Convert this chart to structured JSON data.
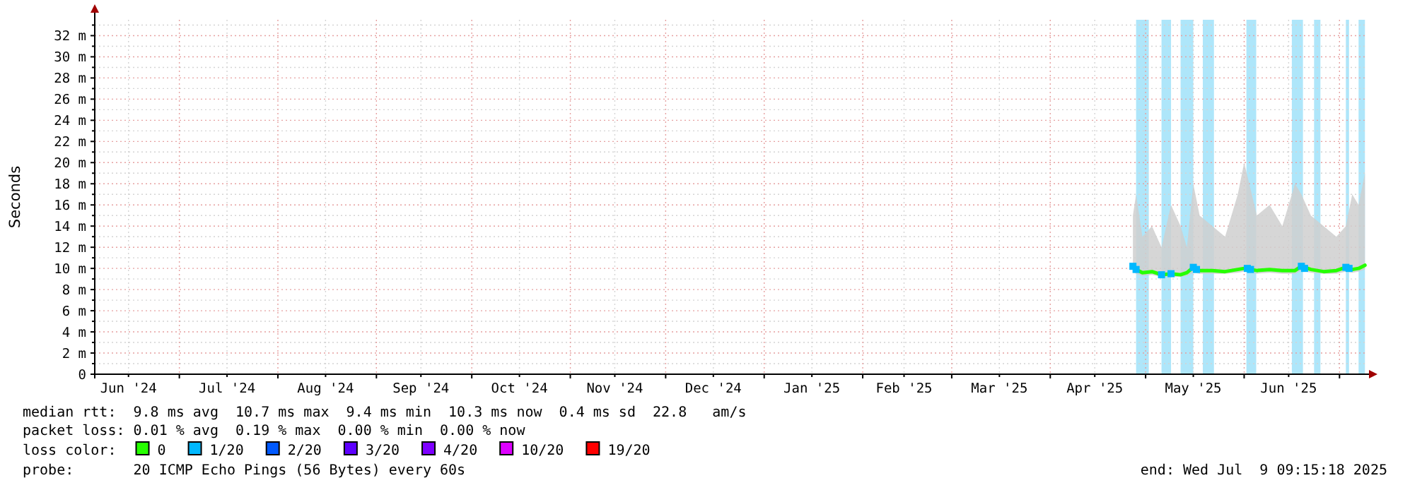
{
  "chart_data": {
    "type": "line",
    "ylabel": "Seconds",
    "xlim": [
      "2024-06-04T09:15",
      "2025-07-09T09:15"
    ],
    "xticks": [
      {
        "value": "2024-06-15",
        "label": "Jun '24"
      },
      {
        "value": "2024-07-01",
        "label": null
      },
      {
        "value": "2024-07-16",
        "label": "Jul '24"
      },
      {
        "value": "2024-08-01",
        "label": null
      },
      {
        "value": "2024-08-16",
        "label": "Aug '24"
      },
      {
        "value": "2024-09-01",
        "label": null
      },
      {
        "value": "2024-09-15",
        "label": "Sep '24"
      },
      {
        "value": "2024-10-01",
        "label": null
      },
      {
        "value": "2024-10-16",
        "label": "Oct '24"
      },
      {
        "value": "2024-11-01",
        "label": null
      },
      {
        "value": "2024-11-15",
        "label": "Nov '24"
      },
      {
        "value": "2024-12-01",
        "label": null
      },
      {
        "value": "2024-12-16",
        "label": "Dec '24"
      },
      {
        "value": "2025-01-01",
        "label": null
      },
      {
        "value": "2025-01-16",
        "label": "Jan '25"
      },
      {
        "value": "2025-02-01",
        "label": null
      },
      {
        "value": "2025-02-14",
        "label": "Feb '25"
      },
      {
        "value": "2025-03-01",
        "label": null
      },
      {
        "value": "2025-03-16",
        "label": "Mar '25"
      },
      {
        "value": "2025-04-01",
        "label": null
      },
      {
        "value": "2025-04-15",
        "label": "Apr '25"
      },
      {
        "value": "2025-05-01",
        "label": null
      },
      {
        "value": "2025-05-16",
        "label": "May '25"
      },
      {
        "value": "2025-06-01",
        "label": null
      },
      {
        "value": "2025-06-15",
        "label": "Jun '25"
      },
      {
        "value": "2025-07-01",
        "label": null
      }
    ],
    "ylim": [
      0,
      33.5
    ],
    "yticks": [
      0,
      {
        "value": 1,
        "label": null
      },
      {
        "value": 2,
        "label": "2 m"
      },
      {
        "value": 3,
        "label": null
      },
      {
        "value": 4,
        "label": "4 m"
      },
      {
        "value": 5,
        "label": null
      },
      {
        "value": 6,
        "label": "6 m"
      },
      {
        "value": 7,
        "label": null
      },
      {
        "value": 8,
        "label": "8 m"
      },
      {
        "value": 9,
        "label": null
      },
      {
        "value": 10,
        "label": "10 m"
      },
      {
        "value": 11,
        "label": null
      },
      {
        "value": 12,
        "label": "12 m"
      },
      {
        "value": 13,
        "label": null
      },
      {
        "value": 14,
        "label": "14 m"
      },
      {
        "value": 15,
        "label": null
      },
      {
        "value": 16,
        "label": "16 m"
      },
      {
        "value": 17,
        "label": null
      },
      {
        "value": 18,
        "label": "18 m"
      },
      {
        "value": 19,
        "label": null
      },
      {
        "value": 20,
        "label": "20 m"
      },
      {
        "value": 21,
        "label": null
      },
      {
        "value": 22,
        "label": "22 m"
      },
      {
        "value": 23,
        "label": null
      },
      {
        "value": 24,
        "label": "24 m"
      },
      {
        "value": 25,
        "label": null
      },
      {
        "value": 26,
        "label": "26 m"
      },
      {
        "value": 27,
        "label": null
      },
      {
        "value": 28,
        "label": "28 m"
      },
      {
        "value": 29,
        "label": null
      },
      {
        "value": 30,
        "label": "30 m"
      },
      {
        "value": 31,
        "label": null
      },
      {
        "value": 32,
        "label": "32 m"
      },
      {
        "value": 33,
        "label": null
      }
    ],
    "grid": true,
    "legend": "bottom",
    "legend_title": "loss color:",
    "x": [
      "2025-04-27",
      "2025-04-28",
      "2025-04-30",
      "2025-05-03",
      "2025-05-06",
      "2025-05-09",
      "2025-05-12",
      "2025-05-14",
      "2025-05-16",
      "2025-05-18",
      "2025-05-22",
      "2025-05-26",
      "2025-05-30",
      "2025-06-01",
      "2025-06-05",
      "2025-06-09",
      "2025-06-13",
      "2025-06-17",
      "2025-06-19",
      "2025-06-22",
      "2025-06-26",
      "2025-06-30",
      "2025-07-03",
      "2025-07-05",
      "2025-07-07",
      "2025-07-09"
    ],
    "series": [
      {
        "name": "0",
        "color": "#26ff00",
        "values": [
          10.2,
          9.9,
          9.6,
          9.7,
          9.4,
          9.5,
          9.4,
          9.6,
          10.1,
          9.8,
          9.8,
          9.7,
          9.9,
          10,
          9.8,
          9.9,
          9.8,
          9.8,
          10.2,
          9.9,
          9.7,
          9.8,
          10.1,
          9.9,
          10,
          10.3
        ],
        "lower": [
          9.7,
          9.5,
          9.3,
          9.4,
          9.2,
          9.2,
          9.2,
          9.3,
          9.6,
          9.5,
          9.5,
          9.5,
          9.6,
          9.7,
          9.5,
          9.6,
          9.5,
          9.5,
          9.8,
          9.6,
          9.5,
          9.5,
          9.7,
          9.6,
          9.7,
          9.9
        ],
        "upper": [
          15,
          17,
          13,
          14,
          12,
          16,
          14,
          12,
          18,
          15,
          14,
          13,
          17,
          20,
          15,
          16,
          14,
          18,
          17,
          15,
          14,
          13,
          14,
          17,
          16,
          19
        ]
      },
      {
        "name": "1/20",
        "type": "scatter",
        "marker": "square",
        "color": "#00b8ff",
        "x": [
          "2025-04-27",
          "2025-04-28",
          "2025-05-06",
          "2025-05-09",
          "2025-05-16",
          "2025-05-17",
          "2025-06-02",
          "2025-06-03",
          "2025-06-19",
          "2025-06-20",
          "2025-07-03",
          "2025-07-04"
        ],
        "values": [
          10.2,
          9.9,
          9.4,
          9.5,
          10.1,
          9.9,
          10,
          9.9,
          10.2,
          10,
          10.1,
          10
        ]
      },
      {
        "name": "2/20",
        "color": "#0059ff",
        "values": [
          null,
          null,
          null,
          null,
          null,
          null,
          null,
          null,
          null,
          null,
          null,
          null,
          null,
          null,
          null,
          null,
          null,
          null,
          null,
          null,
          null,
          null,
          null,
          null,
          null,
          null
        ]
      },
      {
        "name": "3/20",
        "color": "#5e00ff",
        "values": [
          null,
          null,
          null,
          null,
          null,
          null,
          null,
          null,
          null,
          null,
          null,
          null,
          null,
          null,
          null,
          null,
          null,
          null,
          null,
          null,
          null,
          null,
          null,
          null,
          null,
          null
        ]
      },
      {
        "name": "4/20",
        "color": "#7e00ff",
        "values": [
          null,
          null,
          null,
          null,
          null,
          null,
          null,
          null,
          null,
          null,
          null,
          null,
          null,
          null,
          null,
          null,
          null,
          null,
          null,
          null,
          null,
          null,
          null,
          null,
          null,
          null
        ]
      },
      {
        "name": "10/20",
        "color": "#dd00ff",
        "values": [
          null,
          null,
          null,
          null,
          null,
          null,
          null,
          null,
          null,
          null,
          null,
          null,
          null,
          null,
          null,
          null,
          null,
          null,
          null,
          null,
          null,
          null,
          null,
          null,
          null,
          null
        ]
      },
      {
        "name": "19/20",
        "color": "#ff0000",
        "values": [
          null,
          null,
          null,
          null,
          null,
          null,
          null,
          null,
          null,
          null,
          null,
          null,
          null,
          null,
          null,
          null,
          null,
          null,
          null,
          null,
          null,
          null,
          null,
          null,
          null,
          null
        ]
      }
    ],
    "bands": [
      {
        "axis": "x",
        "from": "2025-04-28",
        "to": "2025-05-02",
        "color": "#aee6fa"
      },
      {
        "axis": "x",
        "from": "2025-05-06",
        "to": "2025-05-09",
        "color": "#aee6fa"
      },
      {
        "axis": "x",
        "from": "2025-05-12",
        "to": "2025-05-16",
        "color": "#aee6fa"
      },
      {
        "axis": "x",
        "from": "2025-05-19",
        "to": "2025-05-22T12:00",
        "color": "#aee6fa"
      },
      {
        "axis": "x",
        "from": "2025-06-01T17:00",
        "to": "2025-06-04T19:00",
        "color": "#aee6fa"
      },
      {
        "axis": "x",
        "from": "2025-06-16",
        "to": "2025-06-19T12:00",
        "color": "#aee6fa"
      },
      {
        "axis": "x",
        "from": "2025-06-23",
        "to": "2025-06-25",
        "color": "#aee6fa"
      },
      {
        "axis": "x",
        "from": "2025-07-03",
        "to": "2025-07-04",
        "color": "#aee6fa"
      },
      {
        "axis": "x",
        "from": "2025-07-07",
        "to": "2025-07-09",
        "color": "#aee6fa"
      }
    ],
    "annotations": [
      "median rtt:  9.8 ms avg  10.7 ms max  9.4 ms min  10.3 ms now  0.4 ms sd  22.8   am/s",
      "packet loss: 0.01 % avg  0.19 % max  0.00 % min  0.00 % now",
      "probe:       20 ICMP Echo Pings (56 Bytes) every 60s",
      "end: Wed Jul  9 09:15:18 2025"
    ]
  }
}
